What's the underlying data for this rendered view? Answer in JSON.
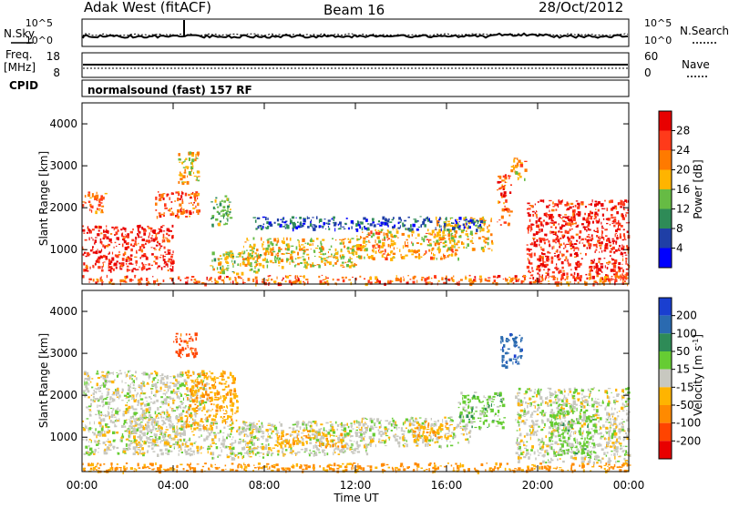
{
  "header": {
    "station": "Adak West (fitACF)",
    "beam": "Beam 16",
    "date": "28/Oct/2012"
  },
  "top_panels": {
    "nsky_label": "N.Sky",
    "nsearch_label": "N.Search",
    "left_ticks": [
      "10^5",
      "10^0"
    ],
    "right_ticks": [
      "10^5",
      "10^0"
    ],
    "freq_label_1": "Freq.",
    "freq_label_2": "[MHz]",
    "freq_ticks": [
      "18",
      "8"
    ],
    "nave_label": "Nave",
    "nave_ticks": [
      "60",
      "0"
    ],
    "cpid_label": "CPID",
    "cpid_text": "normalsound (fast) 157 RF"
  },
  "chart_data": [
    {
      "type": "heatmap",
      "name": "power",
      "ylabel": "Slant Range [km]",
      "xlabel": "Time UT",
      "ylim": [
        180,
        4500
      ],
      "xlim_hours": [
        0,
        24
      ],
      "yticks": [
        "1000",
        "2000",
        "3000",
        "4000"
      ],
      "colorbar": {
        "label": "Power [dB]",
        "ticks": [
          "4",
          "8",
          "12",
          "16",
          "20",
          "24",
          "28"
        ],
        "colors": [
          "#0000ff",
          "#1f3fa6",
          "#2e8b57",
          "#66bb44",
          "#ffb400",
          "#ff7a00",
          "#ff3a1a",
          "#e80000"
        ]
      },
      "regions": [
        {
          "t": [
            0.0,
            4.0
          ],
          "r": [
            500,
            1600
          ],
          "level": 28
        },
        {
          "t": [
            0.0,
            1.0
          ],
          "r": [
            1900,
            2400
          ],
          "level": 24
        },
        {
          "t": [
            3.2,
            5.1
          ],
          "r": [
            1800,
            2400
          ],
          "level": 24
        },
        {
          "t": [
            4.2,
            5.1
          ],
          "r": [
            2600,
            3400
          ],
          "level": 18
        },
        {
          "t": [
            5.6,
            6.5
          ],
          "r": [
            1600,
            2300
          ],
          "level": 14
        },
        {
          "t": [
            5.6,
            7.8
          ],
          "r": [
            450,
            1000
          ],
          "level": 16
        },
        {
          "t": [
            7.0,
            12.0
          ],
          "r": [
            600,
            1300
          ],
          "level": 18
        },
        {
          "t": [
            12.0,
            16.5
          ],
          "r": [
            800,
            1500
          ],
          "level": 20
        },
        {
          "t": [
            15.5,
            18.0
          ],
          "r": [
            1000,
            1800
          ],
          "level": 18
        },
        {
          "t": [
            7.5,
            17.5
          ],
          "r": [
            1500,
            1800
          ],
          "level": 6
        },
        {
          "t": [
            18.2,
            18.8
          ],
          "r": [
            1600,
            2800
          ],
          "level": 24
        },
        {
          "t": [
            18.8,
            19.5
          ],
          "r": [
            2700,
            3200
          ],
          "level": 20
        },
        {
          "t": [
            19.5,
            24.0
          ],
          "r": [
            300,
            2200
          ],
          "level": 28
        },
        {
          "t": [
            0.0,
            24.0
          ],
          "r": [
            200,
            400
          ],
          "level": 24
        }
      ]
    },
    {
      "type": "heatmap",
      "name": "velocity",
      "ylabel": "Slant Range [km]",
      "xlabel": "Time UT",
      "ylim": [
        180,
        4500
      ],
      "xlim_hours": [
        0,
        24
      ],
      "yticks": [
        "1000",
        "2000",
        "3000",
        "4000"
      ],
      "xticks": [
        "00:00",
        "04:00",
        "08:00",
        "12:00",
        "16:00",
        "20:00",
        "00:00"
      ],
      "colorbar": {
        "label": "Velocity [m s",
        "label_sup": "-1",
        "label_end": "]",
        "ticks": [
          "200",
          "100",
          "50",
          "15",
          "-15",
          "-50",
          "-100",
          "-200"
        ],
        "colors": [
          "#1a3fd0",
          "#2a6ab0",
          "#2e8b57",
          "#66cc33",
          "#c8c8c0",
          "#ffb400",
          "#ff8a00",
          "#ff4400",
          "#e80000"
        ]
      },
      "regions": [
        {
          "t": [
            0.0,
            5.5
          ],
          "r": [
            600,
            2600
          ],
          "v": 0
        },
        {
          "t": [
            2.0,
            4.5
          ],
          "r": [
            800,
            1600
          ],
          "v": 0
        },
        {
          "t": [
            4.5,
            6.8
          ],
          "r": [
            1200,
            2600
          ],
          "v": -40
        },
        {
          "t": [
            4.0,
            5.0
          ],
          "r": [
            2900,
            3500
          ],
          "v": -120
        },
        {
          "t": [
            5.5,
            8.0
          ],
          "r": [
            500,
            1400
          ],
          "v": 0
        },
        {
          "t": [
            7.0,
            12.5
          ],
          "r": [
            600,
            1400
          ],
          "v": 0
        },
        {
          "t": [
            8.5,
            11.5
          ],
          "r": [
            800,
            1200
          ],
          "v": -40
        },
        {
          "t": [
            12.0,
            17.0
          ],
          "r": [
            800,
            1500
          ],
          "v": 0
        },
        {
          "t": [
            14.5,
            16.0
          ],
          "r": [
            900,
            1400
          ],
          "v": -40
        },
        {
          "t": [
            16.5,
            18.5
          ],
          "r": [
            1200,
            2100
          ],
          "v": 30
        },
        {
          "t": [
            18.3,
            19.3
          ],
          "r": [
            2700,
            3500
          ],
          "v": 180
        },
        {
          "t": [
            19.0,
            24.0
          ],
          "r": [
            400,
            2200
          ],
          "v": 0
        },
        {
          "t": [
            20.5,
            22.5
          ],
          "r": [
            600,
            1800
          ],
          "v": 30
        },
        {
          "t": [
            0.0,
            24.0
          ],
          "r": [
            200,
            400
          ],
          "v": -60
        }
      ]
    }
  ]
}
